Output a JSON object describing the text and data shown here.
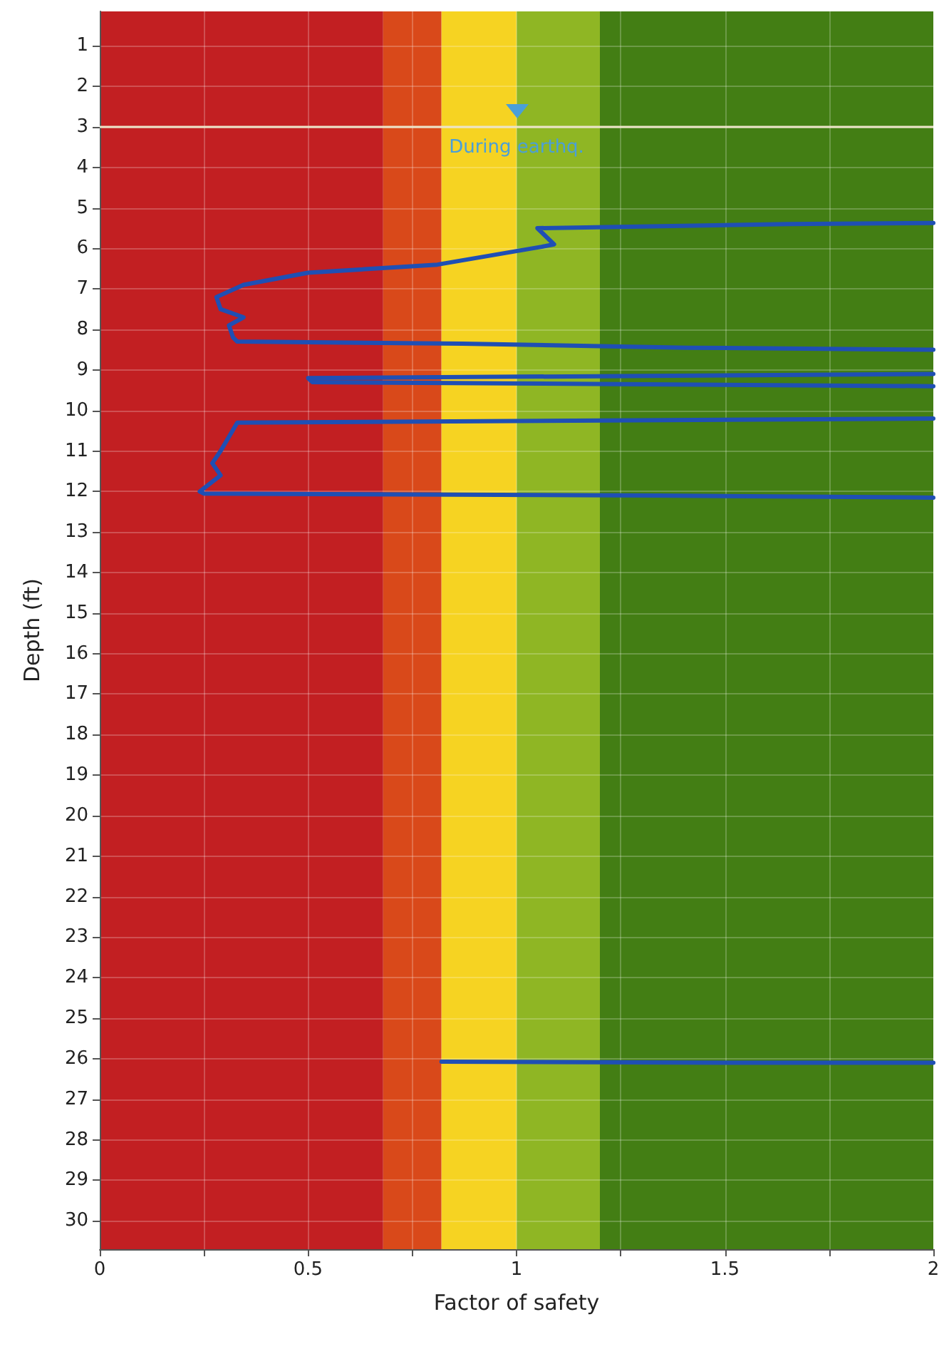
{
  "chart_data": {
    "type": "line",
    "xlabel": "Factor of safety",
    "ylabel": "Depth (ft)",
    "xlim": [
      0,
      2
    ],
    "xticks": [
      0,
      {
        "value": 0.25,
        "label": null
      },
      0.5,
      {
        "value": 0.75,
        "label": null
      },
      1,
      {
        "value": 1.25,
        "label": null
      },
      1.5,
      {
        "value": 1.75,
        "label": null
      },
      2
    ],
    "ylim": [
      30.7,
      0.15
    ],
    "yticks": [
      1,
      2,
      3,
      4,
      5,
      6,
      7,
      8,
      9,
      10,
      11,
      12,
      13,
      14,
      15,
      16,
      17,
      18,
      19,
      20,
      21,
      22,
      23,
      24,
      25,
      26,
      27,
      28,
      29,
      30
    ],
    "grid": true,
    "marker": "none",
    "line_style": "solid",
    "series": [
      {
        "color": "#1f4fb4",
        "x": [
          2,
          1.65,
          1.05,
          1.09,
          1.06,
          0.81,
          0.5,
          0.345,
          0.28,
          0.29,
          0.345,
          0.31,
          0.32,
          0.33,
          0.87,
          1.41,
          2,
          null,
          2,
          0.5,
          0.51,
          2,
          null,
          2,
          0.33,
          0.29,
          0.27,
          0.29,
          0.24,
          0.25,
          1.34,
          2,
          null,
          0.82,
          1.5,
          2
        ],
        "values": [
          5.37,
          5.4,
          5.5,
          5.9,
          5.96,
          6.4,
          6.6,
          6.9,
          7.2,
          7.5,
          7.7,
          7.9,
          8.2,
          8.3,
          8.35,
          8.45,
          8.5,
          null,
          9.1,
          9.2,
          9.3,
          9.4,
          null,
          10.2,
          10.3,
          11.0,
          11.3,
          11.6,
          12.0,
          12.05,
          12.1,
          12.15,
          null,
          26.07,
          26.1,
          26.1
        ]
      }
    ],
    "bands": [
      {
        "axis": "x",
        "from": 0,
        "to": 0.68,
        "color": "#c21f22"
      },
      {
        "axis": "x",
        "from": 0.68,
        "to": 0.82,
        "color": "#d9491a"
      },
      {
        "axis": "x",
        "from": 0.82,
        "to": 1.0,
        "color": "#f6d322"
      },
      {
        "axis": "x",
        "from": 1.0,
        "to": 1.2,
        "color": "#8fb624"
      },
      {
        "axis": "x",
        "from": 1.2,
        "to": 2,
        "color": "#437e14"
      }
    ],
    "ref_lines": [
      {
        "axis": "y",
        "value": 3,
        "label": "During earthq.",
        "color": "#ece4c8"
      }
    ]
  }
}
